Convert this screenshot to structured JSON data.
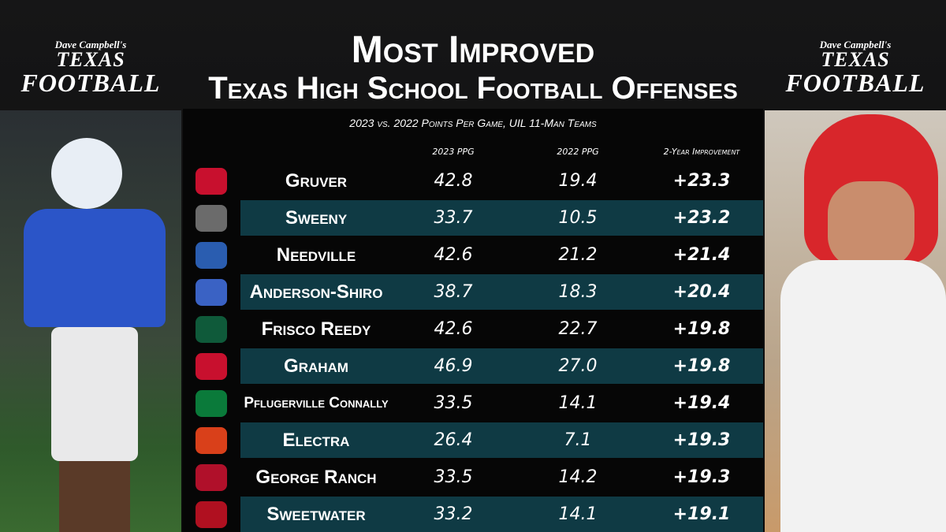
{
  "header": {
    "brand_left": {
      "byline": "Dave Campbell's",
      "line1": "TEXAS",
      "line2": "FOOTBALL"
    },
    "brand_right": {
      "byline": "Dave Campbell's",
      "line1": "TEXAS",
      "line2": "FOOTBALL"
    },
    "title": "Most Improved",
    "title_line2": "Texas High School Football Offenses",
    "caption": "2023 vs. 2022 Points Per Game, UIL 11-Man Teams"
  },
  "table": {
    "columns": [
      "2023 PPG",
      "2022 PPG",
      "2-Year Improvement"
    ],
    "rows": [
      [
        "Gruver",
        "42.8",
        "19.4",
        "+23.3"
      ],
      [
        "Sweeny",
        "33.7",
        "10.5",
        "+23.2"
      ],
      [
        "Needville",
        "42.6",
        "21.2",
        "+21.4"
      ],
      [
        "Anderson-Shiro",
        "38.7",
        "18.3",
        "+20.4"
      ],
      [
        "Frisco Reedy",
        "42.6",
        "22.7",
        "+19.8"
      ],
      [
        "Graham",
        "46.9",
        "27.0",
        "+19.8"
      ],
      [
        "Pflugerville Connally",
        "33.5",
        "14.1",
        "+19.4"
      ],
      [
        "Electra",
        "26.4",
        "7.1",
        "+19.3"
      ],
      [
        "George Ranch",
        "33.5",
        "14.2",
        "+19.3"
      ],
      [
        "Sweetwater",
        "33.2",
        "14.1",
        "+19.1"
      ]
    ]
  }
}
